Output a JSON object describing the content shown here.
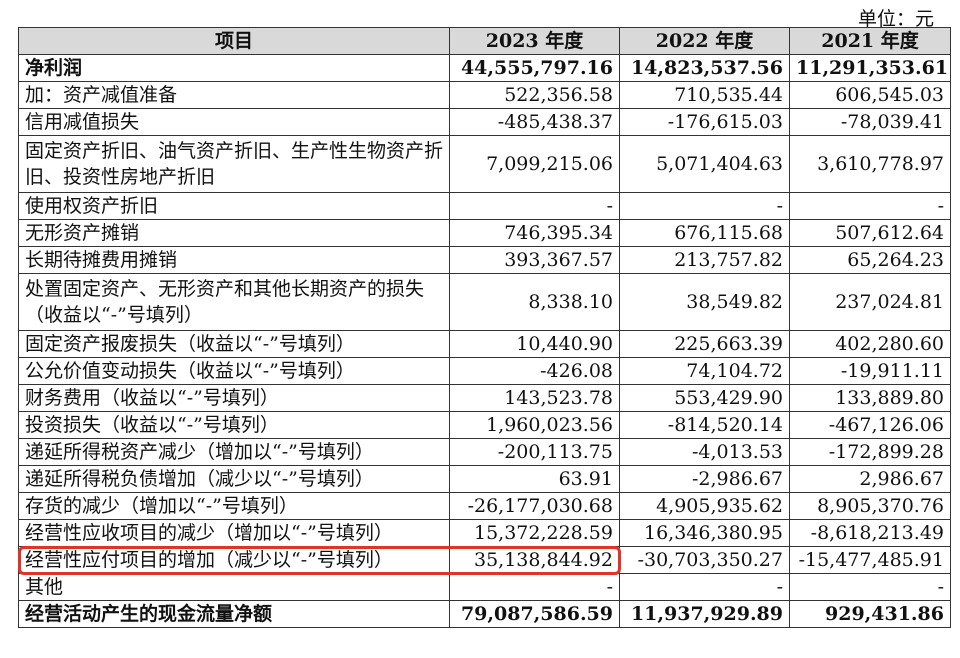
{
  "unit_label": "单位：元",
  "columns": [
    "项目",
    "2023 年度",
    "2022 年度",
    "2021 年度"
  ],
  "rows": [
    {
      "label": "净利润",
      "v2023": "44,555,797.16",
      "v2022": "14,823,537.56",
      "v2021": "11,291,353.61",
      "bold": true
    },
    {
      "label": "加：资产减值准备",
      "v2023": "522,356.58",
      "v2022": "710,535.44",
      "v2021": "606,545.03"
    },
    {
      "label": "信用减值损失",
      "v2023": "-485,438.37",
      "v2022": "-176,615.03",
      "v2021": "-78,039.41"
    },
    {
      "label": "固定资产折旧、油气资产折旧、生产性生物资产折旧、投资性房地产折旧",
      "v2023": "7,099,215.06",
      "v2022": "5,071,404.63",
      "v2021": "3,610,778.97",
      "tall": true
    },
    {
      "label": "使用权资产折旧",
      "v2023": "-",
      "v2022": "-",
      "v2021": "-"
    },
    {
      "label": "无形资产摊销",
      "v2023": "746,395.34",
      "v2022": "676,115.68",
      "v2021": "507,612.64"
    },
    {
      "label": "长期待摊费用摊销",
      "v2023": "393,367.57",
      "v2022": "213,757.82",
      "v2021": "65,264.23"
    },
    {
      "label": "处置固定资产、无形资产和其他长期资产的损失（收益以“-”号填列）",
      "v2023": "8,338.10",
      "v2022": "38,549.82",
      "v2021": "237,024.81",
      "tall": true
    },
    {
      "label": "固定资产报废损失（收益以“-”号填列）",
      "v2023": "10,440.90",
      "v2022": "225,663.39",
      "v2021": "402,280.60"
    },
    {
      "label": "公允价值变动损失（收益以“-”号填列）",
      "v2023": "-426.08",
      "v2022": "74,104.72",
      "v2021": "-19,911.11"
    },
    {
      "label": "财务费用（收益以“-”号填列）",
      "v2023": "143,523.78",
      "v2022": "553,429.90",
      "v2021": "133,889.80"
    },
    {
      "label": "投资损失（收益以“-”号填列）",
      "v2023": "1,960,023.56",
      "v2022": "-814,520.14",
      "v2021": "-467,126.06"
    },
    {
      "label": "递延所得税资产减少（增加以“-”号填列）",
      "v2023": "-200,113.75",
      "v2022": "-4,013.53",
      "v2021": "-172,899.28"
    },
    {
      "label": "递延所得税负债增加（减少以“-”号填列）",
      "v2023": "63.91",
      "v2022": "-2,986.67",
      "v2021": "2,986.67"
    },
    {
      "label": "存货的减少（增加以“-”号填列）",
      "v2023": "-26,177,030.68",
      "v2022": "4,905,935.62",
      "v2021": "8,905,370.76"
    },
    {
      "label": "经营性应收项目的减少（增加以“-”号填列）",
      "v2023": "15,372,228.59",
      "v2022": "16,346,380.95",
      "v2021": "-8,618,213.49"
    },
    {
      "label": "经营性应付项目的增加（减少以“-”号填列）",
      "v2023": "35,138,844.92",
      "v2022": "-30,703,350.27",
      "v2021": "-15,477,485.91"
    },
    {
      "label": "其他",
      "v2023": "-",
      "v2022": "-",
      "v2021": "-"
    },
    {
      "label": "经营活动产生的现金流量净额",
      "v2023": "79,087,586.59",
      "v2022": "11,937,929.89",
      "v2021": "929,431.86",
      "bold": true
    }
  ],
  "highlight_color": "#e0342a"
}
